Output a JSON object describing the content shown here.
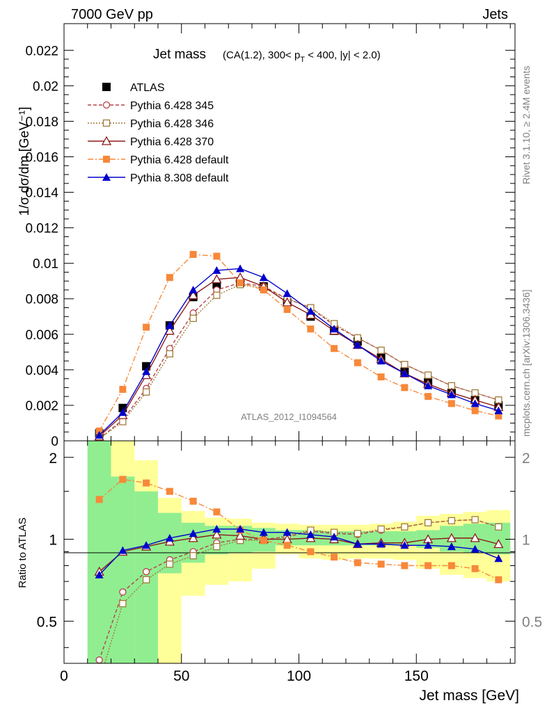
{
  "header": {
    "left": "7000 GeV pp",
    "right": "Jets"
  },
  "side_labels": {
    "rivet": "Rivet 3.1.10, ≥ 2.4M events",
    "mcplots": "mcplots.cern.ch [arXiv:1306.3436]"
  },
  "chart_data": [
    {
      "type": "line",
      "title": "Jet mass",
      "subtitle_parts": {
        "pre": "(CA(1.2), 300< p",
        "sub": "T",
        "post": " < 400, |y| < 2.0)"
      },
      "ylabel": "1/σ dσ/dm [GeV⁻¹]",
      "xlabel": "",
      "watermark": "ATLAS_2012_I1094564",
      "xlim": [
        0,
        192
      ],
      "ylim": [
        0,
        0.0235
      ],
      "yticks": [
        "0",
        "0.002",
        "0.004",
        "0.006",
        "0.008",
        "0.01",
        "0.012",
        "0.014",
        "0.016",
        "0.018",
        "0.02",
        "0.022"
      ],
      "x": [
        15,
        25,
        35,
        45,
        55,
        65,
        75,
        85,
        95,
        105,
        115,
        125,
        135,
        145,
        155,
        165,
        175,
        185
      ],
      "series": [
        {
          "name": "ATLAS",
          "color": "#000000",
          "marker": "square-filled",
          "values": [
            0.00042,
            0.00185,
            0.0042,
            0.0065,
            0.0081,
            0.0088,
            0.0089,
            0.0087,
            0.0078,
            0.007,
            0.0062,
            0.0056,
            0.0047,
            0.0039,
            0.0033,
            0.0027,
            0.0023,
            0.002
          ]
        },
        {
          "name": "Pythia 6.428 345",
          "color": "#b5424a",
          "marker": "circle-open",
          "values": [
            0.00012,
            0.00118,
            0.00295,
            0.0052,
            0.0072,
            0.0085,
            0.0089,
            0.0087,
            0.008,
            0.0075,
            0.0065,
            0.0058,
            0.0051,
            0.0043,
            0.0037,
            0.0031,
            0.0027,
            0.0023
          ]
        },
        {
          "name": "Pythia 6.428 346",
          "color": "#a07b3a",
          "marker": "square-open",
          "values": [
            0.00012,
            0.00108,
            0.00275,
            0.0049,
            0.0069,
            0.0082,
            0.0088,
            0.0086,
            0.008,
            0.0075,
            0.0066,
            0.0058,
            0.0051,
            0.0043,
            0.0037,
            0.0031,
            0.0027,
            0.0023
          ]
        },
        {
          "name": "Pythia 6.428 370",
          "color": "#8b1a1a",
          "marker": "triangle-open",
          "values": [
            0.00025,
            0.00145,
            0.0037,
            0.0062,
            0.0082,
            0.0091,
            0.0092,
            0.0087,
            0.0078,
            0.0071,
            0.0062,
            0.0054,
            0.0046,
            0.0038,
            0.0032,
            0.0027,
            0.0023,
            0.0019
          ]
        },
        {
          "name": "Pythia 6.428 default",
          "color": "#f7883a",
          "marker": "square-filled",
          "values": [
            0.00055,
            0.0029,
            0.0064,
            0.0092,
            0.0105,
            0.0104,
            0.0089,
            0.0085,
            0.0074,
            0.0063,
            0.0052,
            0.0044,
            0.0036,
            0.003,
            0.0025,
            0.0021,
            0.0017,
            0.0014
          ]
        },
        {
          "name": "Pythia 8.308 default",
          "color": "#0000cc",
          "marker": "triangle-filled",
          "values": [
            0.00032,
            0.0016,
            0.0039,
            0.0065,
            0.0085,
            0.0096,
            0.0097,
            0.0092,
            0.0083,
            0.0073,
            0.0063,
            0.0054,
            0.0045,
            0.0038,
            0.0031,
            0.0026,
            0.0021,
            0.0017
          ]
        }
      ]
    },
    {
      "type": "line",
      "ylabel": "Ratio to ATLAS",
      "xlabel": "Jet mass [GeV]",
      "xlim": [
        0,
        192
      ],
      "ylim": [
        0.35,
        2.3
      ],
      "yticks": [
        "0.5",
        "1",
        "2"
      ],
      "xticks": [
        "0",
        "50",
        "100",
        "150"
      ],
      "x": [
        15,
        25,
        35,
        45,
        55,
        65,
        75,
        85,
        95,
        105,
        115,
        125,
        135,
        145,
        155,
        165,
        175,
        185
      ],
      "band_edges": [
        10,
        20,
        30,
        40,
        50,
        60,
        70,
        80,
        90,
        100,
        110,
        120,
        130,
        140,
        150,
        160,
        170,
        180,
        190
      ],
      "stat_band": {
        "color": "#90ee90",
        "lower": [
          0.3,
          0.3,
          0.3,
          0.75,
          0.82,
          0.88,
          0.89,
          0.9,
          0.95,
          0.95,
          0.95,
          0.95,
          0.95,
          0.95,
          0.93,
          0.9,
          0.89,
          0.88
        ],
        "upper": [
          2.5,
          1.7,
          1.5,
          1.25,
          1.15,
          1.12,
          1.12,
          1.1,
          1.08,
          1.08,
          1.07,
          1.07,
          1.07,
          1.07,
          1.08,
          1.12,
          1.14,
          1.15
        ]
      },
      "syst_band": {
        "color": "#ffff99",
        "lower": [
          0.3,
          0.3,
          0.3,
          0.3,
          0.62,
          0.68,
          0.7,
          0.78,
          0.88,
          0.85,
          0.84,
          0.85,
          0.85,
          0.84,
          0.78,
          0.74,
          0.72,
          0.7
        ],
        "upper": [
          2.5,
          2.5,
          1.95,
          1.42,
          1.27,
          1.2,
          1.19,
          1.15,
          1.14,
          1.13,
          1.13,
          1.13,
          1.14,
          1.16,
          1.22,
          1.24,
          1.26,
          1.28
        ]
      },
      "series": [
        {
          "name": "Pythia 6.428 345",
          "color": "#b5424a",
          "marker": "circle-open",
          "values": [
            0.36,
            0.64,
            0.76,
            0.84,
            0.9,
            0.97,
            1.0,
            1.0,
            1.02,
            1.07,
            1.05,
            1.04,
            1.08,
            1.11,
            1.15,
            1.17,
            1.18,
            1.11
          ]
        },
        {
          "name": "Pythia 6.428 346",
          "color": "#a07b3a",
          "marker": "square-open",
          "values": [
            0.3,
            0.58,
            0.71,
            0.81,
            0.87,
            0.94,
            0.99,
            0.99,
            1.03,
            1.08,
            1.06,
            1.05,
            1.09,
            1.11,
            1.15,
            1.17,
            1.18,
            1.11
          ]
        },
        {
          "name": "Pythia 6.428 370",
          "color": "#8b1a1a",
          "marker": "triangle-open",
          "values": [
            0.76,
            0.9,
            0.94,
            0.98,
            1.01,
            1.04,
            1.03,
            1.0,
            1.0,
            1.01,
            1.0,
            0.96,
            0.97,
            0.97,
            1.0,
            1.01,
            1.01,
            0.96
          ]
        },
        {
          "name": "Pythia 6.428 default",
          "color": "#f7883a",
          "marker": "square-filled",
          "values": [
            1.4,
            1.66,
            1.61,
            1.5,
            1.38,
            1.26,
            1.08,
            0.99,
            0.95,
            0.9,
            0.86,
            0.82,
            0.81,
            0.8,
            0.8,
            0.8,
            0.78,
            0.71
          ]
        },
        {
          "name": "Pythia 8.308 default",
          "color": "#0000cc",
          "marker": "triangle-filled",
          "values": [
            0.74,
            0.91,
            0.95,
            1.01,
            1.05,
            1.09,
            1.09,
            1.06,
            1.06,
            1.04,
            1.02,
            0.96,
            0.96,
            0.95,
            0.95,
            0.94,
            0.92,
            0.85
          ]
        }
      ]
    }
  ]
}
